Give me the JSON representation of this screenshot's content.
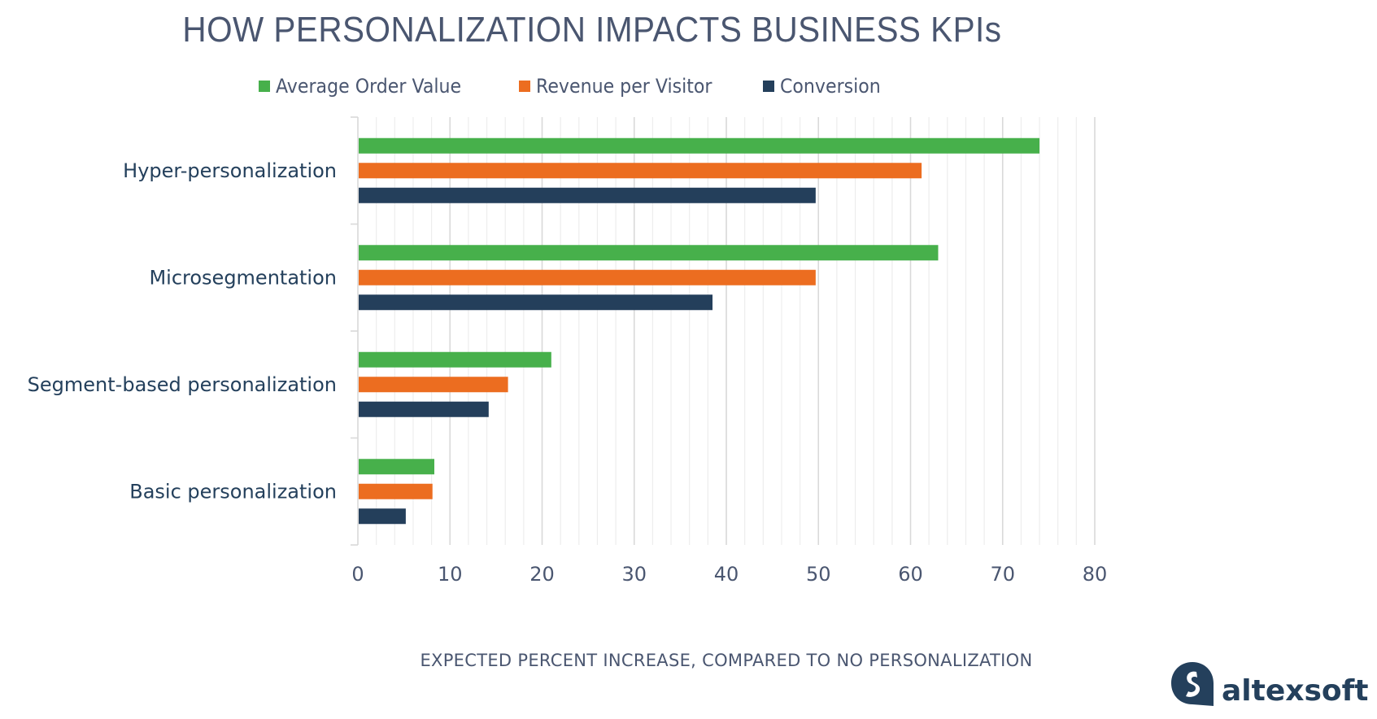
{
  "chart_data": {
    "type": "bar",
    "orientation": "horizontal",
    "title": "HOW PERSONALIZATION IMPACTS BUSINESS KPIs",
    "xlabel": "EXPECTED PERCENT INCREASE, COMPARED TO NO PERSONALIZATION",
    "ylabel": "",
    "categories": [
      "Hyper-personalization",
      "Microsegmentation",
      "Segment-based personalization",
      "Basic personalization"
    ],
    "series": [
      {
        "name": "Average Order Value",
        "color": "#47b04b",
        "values": [
          74,
          63,
          21,
          8.3
        ]
      },
      {
        "name": "Revenue per Visitor",
        "color": "#ec6d20",
        "values": [
          61.2,
          49.7,
          16.3,
          8.1
        ]
      },
      {
        "name": "Conversion",
        "color": "#243f5b",
        "values": [
          49.7,
          38.5,
          14.2,
          5.2
        ]
      }
    ],
    "xlim": [
      0,
      80
    ],
    "xticks": [
      "0",
      "10",
      "20",
      "30",
      "40",
      "50",
      "60",
      "70",
      "80"
    ],
    "grid": true,
    "legend_position": "top"
  },
  "branding": {
    "logo_text": "altexsoft",
    "logo_color": "#24405c"
  }
}
